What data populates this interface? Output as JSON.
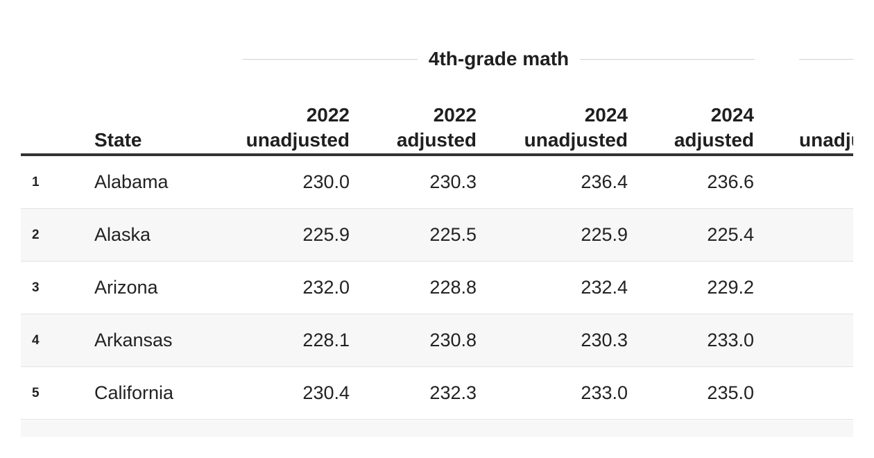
{
  "group_header": {
    "label": "4th-grade math"
  },
  "columns": {
    "state": "State",
    "c1_line1": "2022",
    "c1_line2": "unadjusted",
    "c2_line1": "2022",
    "c2_line2": "adjusted",
    "c3_line1": "2024",
    "c3_line2": "unadjusted",
    "c4_line1": "2024",
    "c4_line2": "adjusted",
    "c5_line2": "unadjusted"
  },
  "rows": [
    {
      "idx": "1",
      "state": "Alabama",
      "v1": "230.0",
      "v2": "230.3",
      "v3": "236.4",
      "v4": "236.6"
    },
    {
      "idx": "2",
      "state": "Alaska",
      "v1": "225.9",
      "v2": "225.5",
      "v3": "225.9",
      "v4": "225.4"
    },
    {
      "idx": "3",
      "state": "Arizona",
      "v1": "232.0",
      "v2": "228.8",
      "v3": "232.4",
      "v4": "229.2"
    },
    {
      "idx": "4",
      "state": "Arkansas",
      "v1": "228.1",
      "v2": "230.8",
      "v3": "230.3",
      "v4": "233.0"
    },
    {
      "idx": "5",
      "state": "California",
      "v1": "230.4",
      "v2": "232.3",
      "v3": "233.0",
      "v4": "235.0"
    }
  ]
}
